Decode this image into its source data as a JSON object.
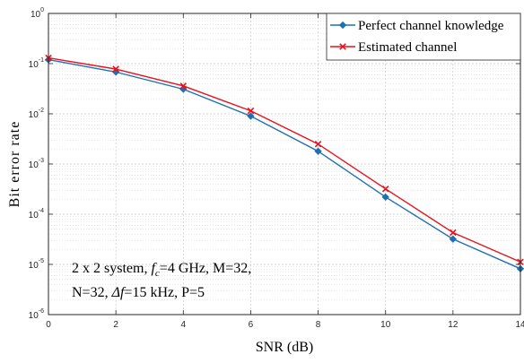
{
  "chart_data": {
    "type": "line",
    "xlabel": "SNR (dB)",
    "ylabel": "Bit error rate",
    "y_scale": "log",
    "xlim": [
      0,
      14
    ],
    "ylim": [
      1e-06,
      1
    ],
    "x_ticks": [
      0,
      2,
      4,
      6,
      8,
      10,
      12,
      14
    ],
    "x_tick_labels": [
      "0",
      "2",
      "4",
      "6",
      "8",
      "10",
      "12",
      "14"
    ],
    "y_ticks": [
      1e-06,
      1e-05,
      0.0001,
      0.001,
      0.01,
      0.1,
      1
    ],
    "y_tick_labels": [
      {
        "base": "10",
        "exp": "-6"
      },
      {
        "base": "10",
        "exp": "-5"
      },
      {
        "base": "10",
        "exp": "-4"
      },
      {
        "base": "10",
        "exp": "-3"
      },
      {
        "base": "10",
        "exp": "-2"
      },
      {
        "base": "10",
        "exp": "-1"
      },
      {
        "base": "10",
        "exp": "0"
      }
    ],
    "grid": true,
    "minor_grid": true,
    "legend_position": "top-right",
    "x": [
      0,
      2,
      4,
      6,
      8,
      10,
      12,
      14
    ],
    "series": [
      {
        "name": "Perfect channel knowledge",
        "color": "#1f6fb4",
        "marker": "diamond",
        "values": [
          0.12,
          0.068,
          0.031,
          0.009,
          0.0018,
          0.00022,
          3.2e-05,
          8.2e-06
        ]
      },
      {
        "name": "Estimated channel",
        "color": "#e8121c",
        "marker": "x",
        "values": [
          0.13,
          0.078,
          0.036,
          0.0115,
          0.0025,
          0.00032,
          4.3e-05,
          1.12e-05
        ]
      }
    ],
    "annotation": {
      "line1_pre": "2 x 2 system, ",
      "line1_sym": "f",
      "line1_sub": "c",
      "line1_post": "=4 GHz, M=32,",
      "line2_pre": "N=32, ",
      "line2_sym": "Δf",
      "line2_post": "=15 kHz, P=5"
    }
  }
}
